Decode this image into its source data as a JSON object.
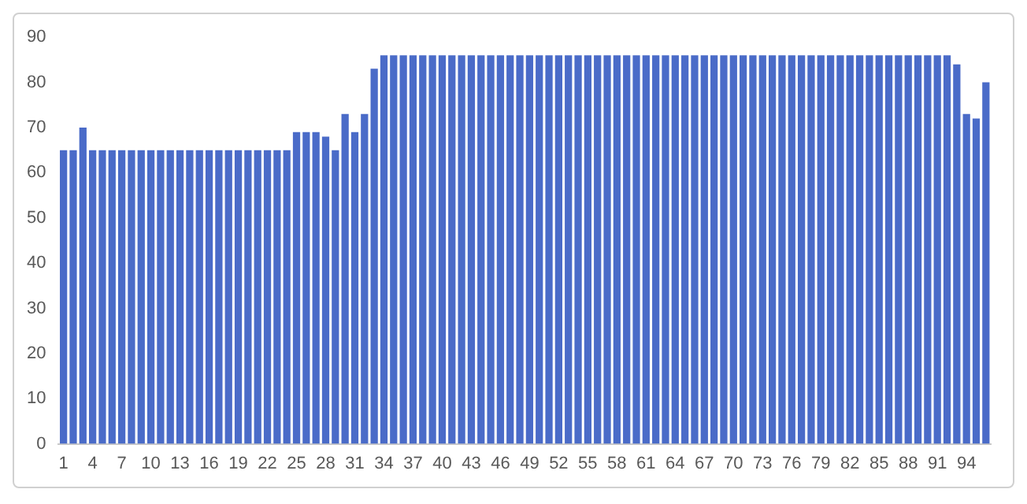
{
  "chart_data": {
    "type": "bar",
    "categories": [
      "1",
      null,
      null,
      "4",
      null,
      null,
      "7",
      null,
      null,
      "10",
      null,
      null,
      "13",
      null,
      null,
      "16",
      null,
      null,
      "19",
      null,
      null,
      "22",
      null,
      null,
      "25",
      null,
      null,
      "28",
      null,
      null,
      "31",
      null,
      null,
      "34",
      null,
      null,
      "37",
      null,
      null,
      "40",
      null,
      null,
      "43",
      null,
      null,
      "46",
      null,
      null,
      "49",
      null,
      null,
      "52",
      null,
      null,
      "55",
      null,
      null,
      "58",
      null,
      null,
      "61",
      null,
      null,
      "64",
      null,
      null,
      "67",
      null,
      null,
      "70",
      null,
      null,
      "73",
      null,
      null,
      "76",
      null,
      null,
      "79",
      null,
      null,
      "82",
      null,
      null,
      "85",
      null,
      null,
      "88",
      null,
      null,
      "91",
      null,
      null,
      "94",
      null,
      null
    ],
    "values": [
      65,
      65,
      70,
      65,
      65,
      65,
      65,
      65,
      65,
      65,
      65,
      65,
      65,
      65,
      65,
      65,
      65,
      65,
      65,
      65,
      65,
      65,
      65,
      65,
      69,
      69,
      69,
      68,
      65,
      73,
      69,
      73,
      83,
      86,
      86,
      86,
      86,
      86,
      86,
      86,
      86,
      86,
      86,
      86,
      86,
      86,
      86,
      86,
      86,
      86,
      86,
      86,
      86,
      86,
      86,
      86,
      86,
      86,
      86,
      86,
      86,
      86,
      86,
      86,
      86,
      86,
      86,
      86,
      86,
      86,
      86,
      86,
      86,
      86,
      86,
      86,
      86,
      86,
      86,
      86,
      86,
      86,
      86,
      86,
      86,
      86,
      86,
      86,
      86,
      86,
      86,
      86,
      84,
      73,
      72,
      80
    ],
    "color": "#4a6bc8",
    "ylim": [
      0,
      90
    ],
    "yticks": [
      0,
      10,
      20,
      30,
      40,
      50,
      60,
      70,
      80,
      90
    ],
    "grid": false,
    "legend": false
  }
}
